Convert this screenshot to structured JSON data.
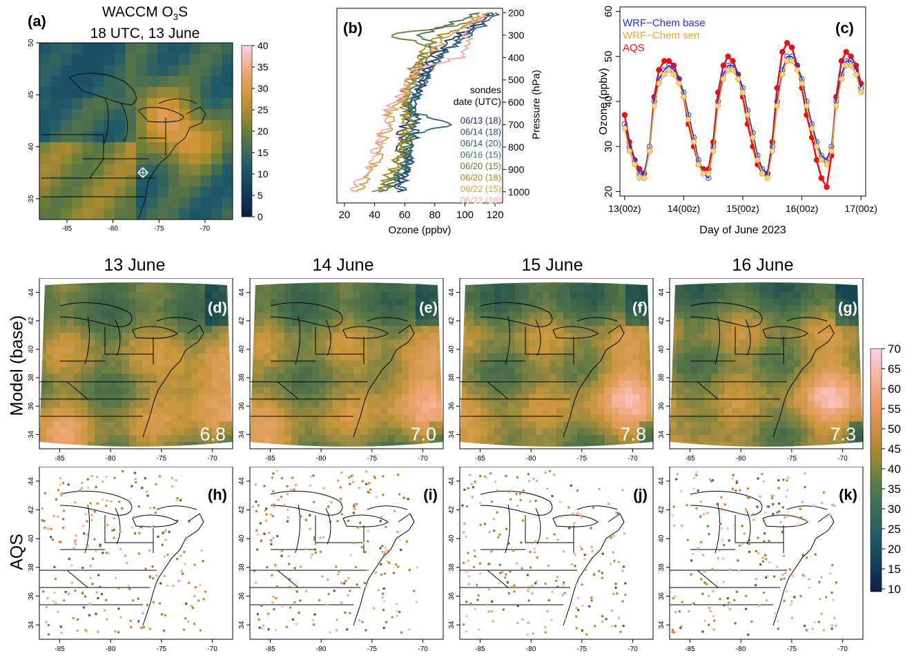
{
  "panel_a": {
    "label": "(a)",
    "title_line1": "WACCM O",
    "title_sub": "3",
    "title_s": "S",
    "title_line2": "18 UTC, 13 June",
    "xticks": [
      "-85",
      "-80",
      "-75",
      "-70"
    ],
    "yticks": [
      "35",
      "40",
      "45",
      "50"
    ],
    "colorbar_ticks": [
      "0",
      "5",
      "10",
      "15",
      "20",
      "25",
      "30",
      "35",
      "40"
    ]
  },
  "panel_b": {
    "label": "(b)",
    "xlabel": "Ozone (ppbv)",
    "ylabel": "Pressure (hPa)",
    "xticks": [
      "20",
      "40",
      "60",
      "80",
      "100",
      "120"
    ],
    "yticks": [
      "200",
      "300",
      "400",
      "500",
      "600",
      "700",
      "800",
      "900",
      "1000"
    ],
    "legend_title1": "sondes",
    "legend_title2": "date (UTC)"
  },
  "panel_c": {
    "label": "(c)",
    "xlabel": "Day of June 2023",
    "ylabel": "Ozone (ppbv)"
  },
  "row_labels": {
    "model": "Model (base)",
    "aqs": "AQS"
  },
  "day_titles": [
    "13 June",
    "14 June",
    "15 June",
    "16 June"
  ],
  "model_panels": [
    {
      "label": "(d)",
      "value": "6.8"
    },
    {
      "label": "(e)",
      "value": "7.0"
    },
    {
      "label": "(f)",
      "value": "7.8"
    },
    {
      "label": "(g)",
      "value": "7.3"
    }
  ],
  "aqs_panels": [
    {
      "label": "(h)"
    },
    {
      "label": "(i)"
    },
    {
      "label": "(j)"
    },
    {
      "label": "(k)"
    }
  ],
  "map_xticks": [
    "-85",
    "-80",
    "-75",
    "-70"
  ],
  "map_yticks": [
    "34",
    "36",
    "38",
    "40",
    "42",
    "44"
  ],
  "big_colorbar_ticks": [
    "10",
    "15",
    "20",
    "25",
    "30",
    "35",
    "40",
    "45",
    "50",
    "55",
    "60",
    "65",
    "70"
  ],
  "colors": {
    "low": "#0b1f4a",
    "mid_low": "#1f5a6a",
    "mid": "#6b7d3a",
    "mid_high": "#c9922f",
    "high": "#f2a57a",
    "top": "#fbd3e6",
    "base": "#2233dd",
    "sen": "#f0a830",
    "aqs": "#e81010"
  },
  "chart_data": [
    {
      "type": "heatmap",
      "title": "WACCM O3S 18 UTC, 13 June",
      "xlim": [
        -88,
        -67
      ],
      "ylim": [
        33,
        50
      ],
      "colorbar_range": [
        0,
        40
      ]
    },
    {
      "type": "line",
      "xlabel": "Ozone (ppbv)",
      "ylabel": "Pressure (hPa)",
      "xlim": [
        15,
        125
      ],
      "ylim": [
        1050,
        180
      ],
      "y": [
        1000,
        950,
        900,
        850,
        800,
        750,
        700,
        650,
        600,
        550,
        500,
        450,
        400,
        350,
        300,
        250,
        200
      ],
      "series": [
        {
          "name": "06/13 (18)",
          "color": "#1c2f6e",
          "values": [
            55,
            57,
            60,
            63,
            55,
            58,
            60,
            62,
            66,
            70,
            72,
            75,
            80,
            85,
            95,
            110,
            115
          ]
        },
        {
          "name": "06/14 (18)",
          "color": "#2a4f7a",
          "values": [
            58,
            60,
            62,
            64,
            64,
            66,
            68,
            66,
            64,
            70,
            73,
            76,
            82,
            90,
            100,
            108,
            118
          ]
        },
        {
          "name": "06/14 (20)",
          "color": "#2f6276",
          "values": [
            56,
            58,
            60,
            62,
            62,
            64,
            90,
            68,
            66,
            68,
            72,
            78,
            84,
            92,
            102,
            112,
            120
          ]
        },
        {
          "name": "06/16 (15)",
          "color": "#3f6e55",
          "values": [
            46,
            52,
            56,
            60,
            62,
            64,
            66,
            64,
            62,
            64,
            68,
            70,
            74,
            80,
            70,
            90,
            110
          ]
        },
        {
          "name": "06/20 (15)",
          "color": "#6b7a35",
          "values": [
            44,
            50,
            54,
            58,
            60,
            62,
            64,
            62,
            60,
            62,
            66,
            68,
            72,
            78,
            50,
            100,
            118
          ]
        },
        {
          "name": "06/20 (18)",
          "color": "#a08a2a",
          "values": [
            42,
            48,
            52,
            56,
            58,
            60,
            62,
            60,
            58,
            60,
            64,
            66,
            70,
            76,
            84,
            104,
            116
          ]
        },
        {
          "name": "06/22 (15)",
          "color": "#d4a04a",
          "values": [
            28,
            34,
            40,
            42,
            44,
            46,
            52,
            50,
            56,
            62,
            66,
            70,
            74,
            82,
            90,
            100,
            110
          ]
        },
        {
          "name": "06/22 (18)",
          "color": "#f4a8a0",
          "values": [
            24,
            30,
            36,
            40,
            42,
            44,
            50,
            48,
            54,
            60,
            64,
            68,
            96,
            100,
            102,
            106,
            112
          ]
        }
      ]
    },
    {
      "type": "line",
      "xlabel": "Day of June 2023",
      "ylabel": "Ozone (ppbv)",
      "xticks": [
        "13(00z)",
        "14(00z)",
        "15(00z)",
        "16(00z)",
        "17(00z)"
      ],
      "xlim": [
        13,
        17
      ],
      "ylim": [
        19,
        61
      ],
      "yticks": [
        20,
        30,
        40,
        50,
        60
      ],
      "x": [
        13.0,
        13.08,
        13.17,
        13.25,
        13.33,
        13.42,
        13.5,
        13.58,
        13.67,
        13.75,
        13.83,
        13.92,
        14.0,
        14.08,
        14.17,
        14.25,
        14.33,
        14.42,
        14.5,
        14.58,
        14.67,
        14.75,
        14.83,
        14.92,
        15.0,
        15.08,
        15.17,
        15.25,
        15.33,
        15.42,
        15.5,
        15.58,
        15.67,
        15.75,
        15.83,
        15.92,
        16.0,
        16.08,
        16.17,
        16.25,
        16.33,
        16.42,
        16.5,
        16.58,
        16.67,
        16.75,
        16.83,
        16.92,
        17.0
      ],
      "series": [
        {
          "name": "WRF−Chem base",
          "values": [
            35,
            30,
            27,
            24,
            24,
            30,
            40,
            45,
            47,
            48,
            47,
            45,
            42,
            37,
            32,
            27,
            24,
            23,
            30,
            40,
            46,
            48,
            48,
            46,
            43,
            38,
            33,
            28,
            25,
            24,
            30,
            40,
            47,
            50,
            50,
            48,
            45,
            40,
            35,
            31,
            28,
            27,
            30,
            40,
            46,
            49,
            49,
            47,
            43
          ]
        },
        {
          "name": "WRF−Chem sen",
          "values": [
            34,
            29,
            26,
            23,
            23,
            29,
            39,
            44,
            46,
            47,
            46,
            44,
            41,
            36,
            31,
            26,
            24,
            24,
            29,
            39,
            45,
            47,
            47,
            45,
            42,
            37,
            32,
            27,
            24,
            23,
            29,
            39,
            46,
            49,
            49,
            47,
            44,
            39,
            34,
            30,
            27,
            26,
            29,
            39,
            45,
            48,
            48,
            46,
            42
          ]
        },
        {
          "name": "AQS",
          "values": [
            37,
            31,
            27,
            25,
            24,
            29,
            41,
            47,
            49,
            49,
            48,
            45,
            41,
            35,
            30,
            26,
            25,
            25,
            31,
            42,
            48,
            50,
            49,
            46,
            41,
            35,
            30,
            26,
            24,
            24,
            31,
            43,
            51,
            53,
            52,
            48,
            43,
            37,
            32,
            27,
            23,
            21,
            28,
            41,
            49,
            51,
            50,
            48,
            44
          ]
        }
      ]
    }
  ]
}
